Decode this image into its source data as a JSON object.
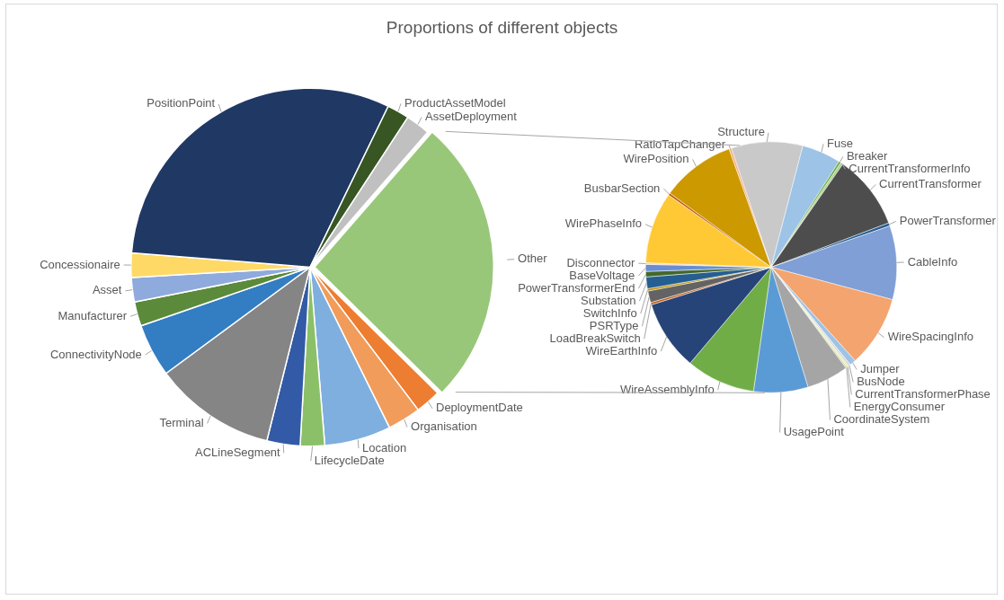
{
  "chart_data": [
    {
      "type": "pie",
      "title": "Proportions of different objects",
      "categories": [
        "Other",
        "DeploymentDate",
        "Organisation",
        "Location",
        "LifecycleDate",
        "ACLineSegment",
        "Terminal",
        "ConnectivityNode",
        "Manufacturer",
        "Asset",
        "Concessionaire",
        "PositionPoint",
        "ProductAssetModel",
        "AssetDeployment"
      ],
      "values": [
        26,
        2.3,
        3,
        6,
        2.2,
        3,
        11,
        4.8,
        2.2,
        2.2,
        2.2,
        30.9,
        2,
        2.2
      ],
      "colors": [
        "#99c77a",
        "#ed7d31",
        "#f19c5b",
        "#7eafdf",
        "#8cc068",
        "#335aa6",
        "#858585",
        "#337dc3",
        "#5b8a3a",
        "#8faadc",
        "#ffd966",
        "#203864",
        "#375623",
        "#c0c0c0"
      ]
    },
    {
      "type": "pie",
      "categories": [
        "Structure",
        "Fuse",
        "Breaker",
        "CurrentTransformerInfo",
        "CurrentTransformer",
        "PowerTransformer",
        "CableInfo",
        "WireSpacingInfo",
        "Jumper",
        "BusNode",
        "CurrentTransformerPhase",
        "EnergyConsumer",
        "CoordinateSystem",
        "UsagePoint",
        "WireAssemblyInfo",
        "WireEarthInfo",
        "LoadBreakSwitch",
        "PSRType",
        "SwitchInfo",
        "Substation",
        "PowerTransformerEnd",
        "BaseVoltage",
        "Disconnector",
        "WirePhaseInfo",
        "BusbarSection",
        "WirePosition",
        "RatioTapChanger"
      ],
      "values": [
        9.2,
        5,
        0.3,
        0.3,
        9.6,
        0.4,
        9.5,
        9.2,
        0.8,
        0.3,
        0.2,
        0.2,
        5.4,
        7,
        8.9,
        9,
        0.3,
        1.5,
        0.3,
        1.5,
        0.7,
        0.9,
        0.2,
        9.2,
        0.3,
        9.5,
        0.3
      ],
      "colors": [
        "#c9c9c9",
        "#9dc3e6",
        "#70ad47",
        "#a9d18e",
        "#4d4d4d",
        "#255e91",
        "#7f9fd6",
        "#f4a46e",
        "#9dc3e6",
        "#d9d9d9",
        "#ffe699",
        "#c5e0b4",
        "#a5a5a5",
        "#5b9bd5",
        "#70ad47",
        "#264478",
        "#c55a11",
        "#636363",
        "#bf9000",
        "#255e91",
        "#43682b",
        "#698ed0",
        "#f8cbad",
        "#ffc935",
        "#c55a11",
        "#cc9900",
        "#f4b183"
      ]
    }
  ]
}
